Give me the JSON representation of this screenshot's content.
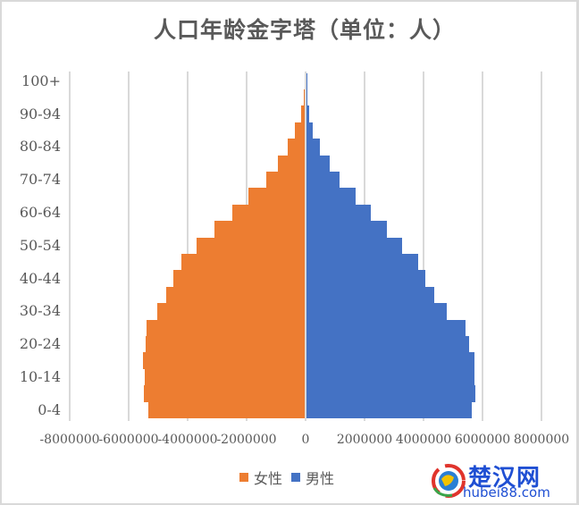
{
  "title": "人口年龄金字塔（单位：人）",
  "legend": {
    "female_label": "女性",
    "male_label": "男性",
    "female_color": "#ed7d31",
    "male_color": "#4472c4"
  },
  "watermark": {
    "cn": "楚汉网",
    "en": "hubei88.com",
    "icon": "globe-logo-icon"
  },
  "y_axis_labels": [
    "100+",
    "90-94",
    "80-84",
    "70-74",
    "60-64",
    "50-54",
    "40-44",
    "30-34",
    "20-24",
    "10-14",
    "0-4"
  ],
  "x_axis_labels": [
    "-8000000",
    "-6000000",
    "-4000000",
    "-2000000",
    "0",
    "2000000",
    "4000000",
    "6000000",
    "8000000"
  ],
  "chart_data": {
    "type": "bar",
    "orientation": "horizontal",
    "subtype": "population-pyramid",
    "title": "人口年龄金字塔（单位：人）",
    "xlabel": "",
    "ylabel": "",
    "xlim": [
      -8000000,
      8000000
    ],
    "x_ticks": [
      -8000000,
      -6000000,
      -4000000,
      -2000000,
      0,
      2000000,
      4000000,
      6000000,
      8000000
    ],
    "grid": "vertical",
    "legend_position": "bottom",
    "categories": [
      "0-4",
      "5-9",
      "10-14",
      "15-19",
      "20-24",
      "25-29",
      "30-34",
      "35-39",
      "40-44",
      "45-49",
      "50-54",
      "55-59",
      "60-64",
      "65-69",
      "70-74",
      "75-79",
      "80-84",
      "85-89",
      "90-94",
      "95-99",
      "100+"
    ],
    "series": [
      {
        "name": "女性",
        "color": "#ed7d31",
        "values": [
          -5330000,
          -5480000,
          -5450000,
          -5520000,
          -5420000,
          -5390000,
          -5030000,
          -4730000,
          -4480000,
          -4210000,
          -3700000,
          -3090000,
          -2480000,
          -1940000,
          -1330000,
          -940000,
          -600000,
          -360000,
          -150000,
          -50000,
          -10000
        ]
      },
      {
        "name": "男性",
        "color": "#4472c4",
        "values": [
          5610000,
          5730000,
          5700000,
          5700000,
          5520000,
          5390000,
          4760000,
          4330000,
          4030000,
          3790000,
          3240000,
          2730000,
          2180000,
          1670000,
          1120000,
          790000,
          450000,
          210000,
          100000,
          20000,
          3000
        ]
      }
    ]
  }
}
